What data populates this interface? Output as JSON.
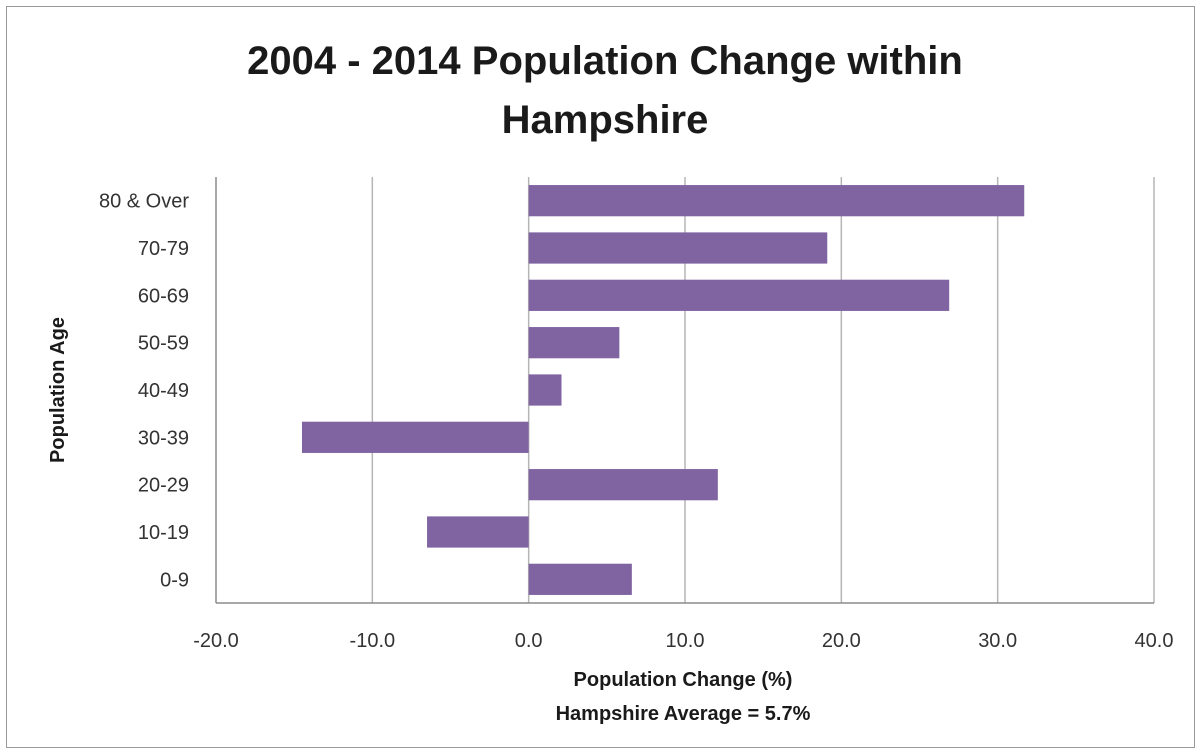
{
  "chart_data": {
    "type": "bar",
    "orientation": "horizontal",
    "title_lines": [
      "2004 - 2014 Population Change within",
      "Hampshire"
    ],
    "xlabel": "Population Change (%)",
    "subtitle": "Hampshire Average = 5.7%",
    "ylabel": "Population Age",
    "categories": [
      "80 & Over",
      "70-79",
      "60-69",
      "50-59",
      "40-49",
      "30-39",
      "20-29",
      "10-19",
      "0-9"
    ],
    "values": [
      31.7,
      19.1,
      26.9,
      5.8,
      2.1,
      -14.5,
      12.1,
      -6.5,
      6.6
    ],
    "xlim": [
      -20,
      40
    ],
    "xticks": [
      -20,
      -10,
      0,
      10,
      20,
      30,
      40
    ],
    "xtick_labels": [
      "-20.0",
      "-10.0",
      "0.0",
      "10.0",
      "20.0",
      "30.0",
      "40.0"
    ],
    "grid": "vertical",
    "legend": "none",
    "bar_color": "#8064a2"
  }
}
